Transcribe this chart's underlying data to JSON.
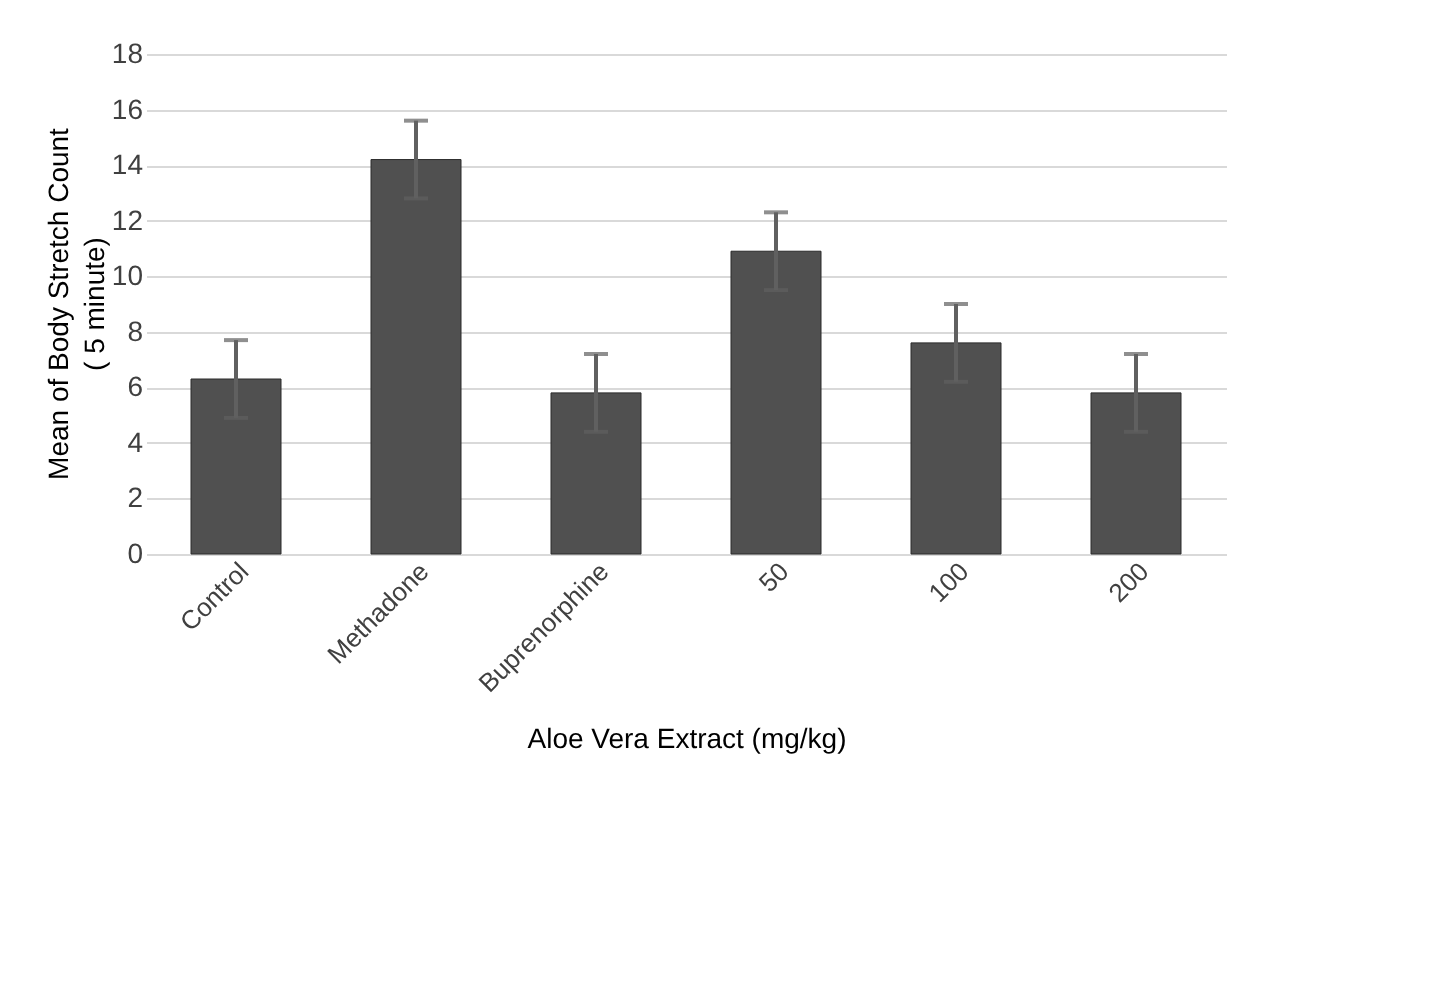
{
  "chart_data": {
    "type": "bar",
    "xlabel": "Aloe Vera Extract (mg/kg)",
    "ylabel": "Mean of Body Stretch Count\n( 5 minute)",
    "categories": [
      "Control",
      "Methadone",
      "Buprenorphine",
      "50",
      "100",
      "200"
    ],
    "values": [
      6.3,
      14.2,
      5.8,
      10.9,
      7.6,
      5.8
    ],
    "errors": [
      1.4,
      1.4,
      1.4,
      1.4,
      1.4,
      1.4
    ],
    "color": "#505050",
    "ylim": [
      0,
      18
    ],
    "yticks": [
      0,
      2,
      4,
      6,
      8,
      10,
      12,
      14,
      16,
      18
    ],
    "grid": "y"
  }
}
